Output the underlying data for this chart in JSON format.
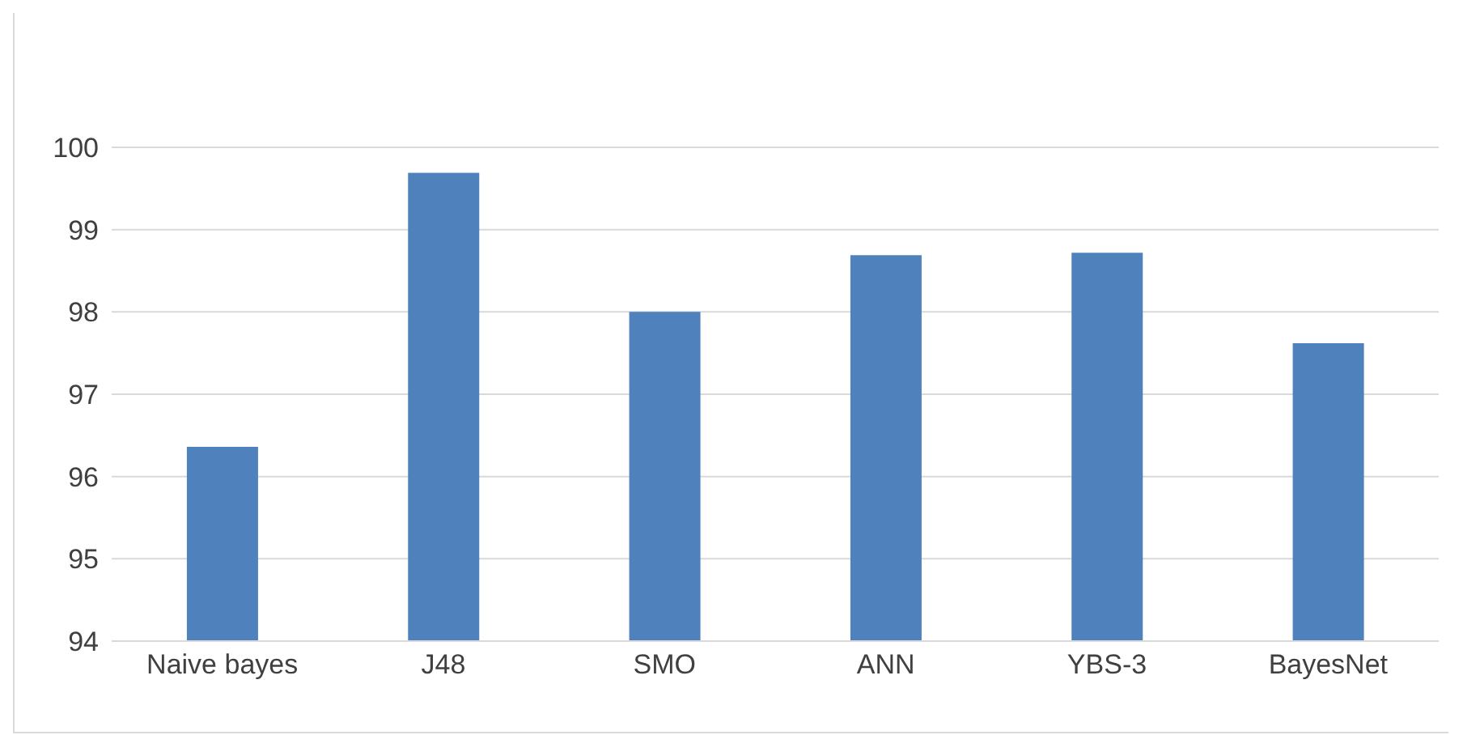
{
  "chart_data": {
    "type": "bar",
    "categories": [
      "Naive bayes",
      "J48",
      "SMO",
      "ANN",
      "YBS-3",
      "BayesNet"
    ],
    "values": [
      96.36,
      99.69,
      98.0,
      98.69,
      98.72,
      97.62
    ],
    "color": "#4f81bd",
    "ylim": [
      94,
      100
    ],
    "yticks": [
      94,
      95,
      96,
      97,
      98,
      99,
      100
    ],
    "grid": "y"
  }
}
